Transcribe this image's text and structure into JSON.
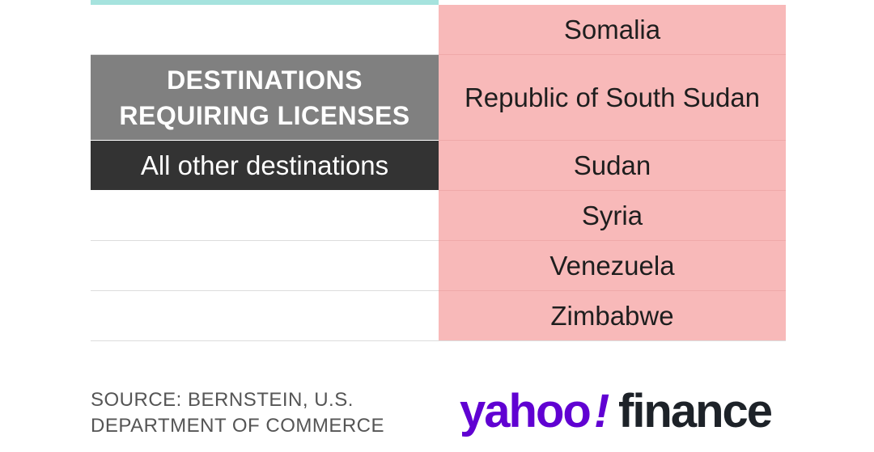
{
  "table": {
    "header_line1": "DESTINATIONS",
    "header_line2": "REQUIRING LICENSES",
    "left_label": "All other destinations",
    "countries": [
      "Somalia",
      "Republic of South Sudan",
      "Sudan",
      "Syria",
      "Venezuela",
      "Zimbabwe"
    ]
  },
  "footer": {
    "source_line1": "SOURCE: BERNSTEIN, U.S.",
    "source_line2": "DEPARTMENT OF COMMERCE"
  },
  "logo": {
    "part1": "yahoo",
    "bang": "!",
    "part2": "finance",
    "colors": {
      "yahoo": "#6001d2",
      "finance": "#1d2228"
    }
  }
}
